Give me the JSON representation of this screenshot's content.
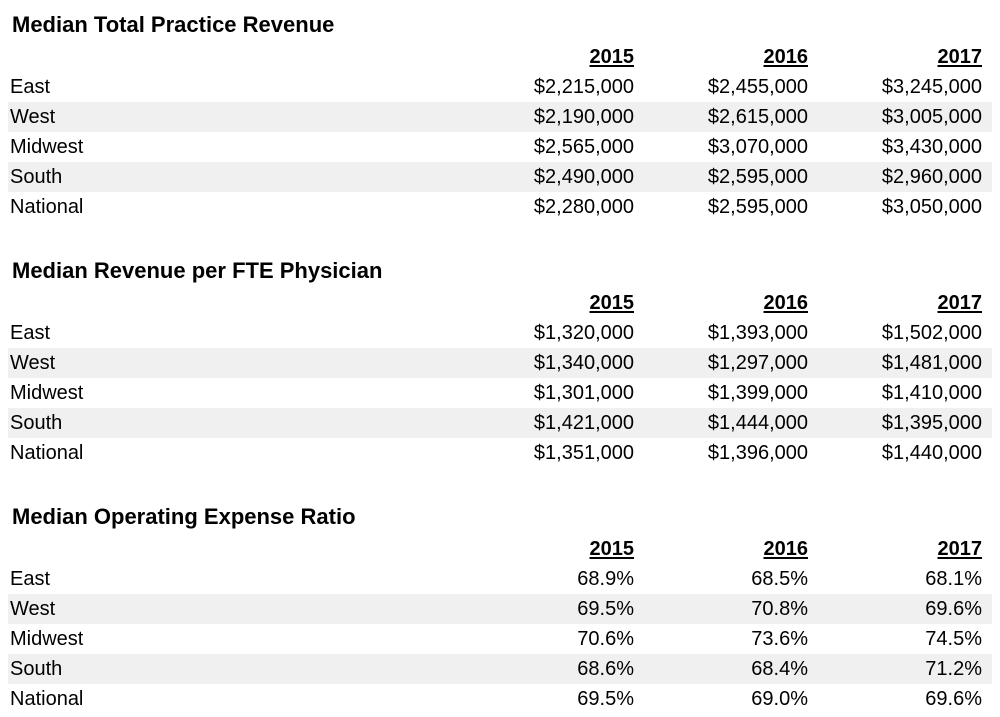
{
  "sections": [
    {
      "title": "Median Total Practice Revenue",
      "years": [
        "2015",
        "2016",
        "2017"
      ],
      "rows": [
        {
          "region": "East",
          "values": [
            "$2,215,000",
            "$2,455,000",
            "$3,245,000"
          ]
        },
        {
          "region": "West",
          "values": [
            "$2,190,000",
            "$2,615,000",
            "$3,005,000"
          ]
        },
        {
          "region": "Midwest",
          "values": [
            "$2,565,000",
            "$3,070,000",
            "$3,430,000"
          ]
        },
        {
          "region": "South",
          "values": [
            "$2,490,000",
            "$2,595,000",
            "$2,960,000"
          ]
        },
        {
          "region": "National",
          "values": [
            "$2,280,000",
            "$2,595,000",
            "$3,050,000"
          ]
        }
      ]
    },
    {
      "title": "Median Revenue per FTE Physician",
      "years": [
        "2015",
        "2016",
        "2017"
      ],
      "rows": [
        {
          "region": "East",
          "values": [
            "$1,320,000",
            "$1,393,000",
            "$1,502,000"
          ]
        },
        {
          "region": "West",
          "values": [
            "$1,340,000",
            "$1,297,000",
            "$1,481,000"
          ]
        },
        {
          "region": "Midwest",
          "values": [
            "$1,301,000",
            "$1,399,000",
            "$1,410,000"
          ]
        },
        {
          "region": "South",
          "values": [
            "$1,421,000",
            "$1,444,000",
            "$1,395,000"
          ]
        },
        {
          "region": "National",
          "values": [
            "$1,351,000",
            "$1,396,000",
            "$1,440,000"
          ]
        }
      ]
    },
    {
      "title": "Median Operating Expense Ratio",
      "years": [
        "2015",
        "2016",
        "2017"
      ],
      "rows": [
        {
          "region": "East",
          "values": [
            "68.9%",
            "68.5%",
            "68.1%"
          ]
        },
        {
          "region": "West",
          "values": [
            "69.5%",
            "70.8%",
            "69.6%"
          ]
        },
        {
          "region": "Midwest",
          "values": [
            "70.6%",
            "73.6%",
            "74.5%"
          ]
        },
        {
          "region": "South",
          "values": [
            "68.6%",
            "68.4%",
            "71.2%"
          ]
        },
        {
          "region": "National",
          "values": [
            "69.5%",
            "69.0%",
            "69.6%"
          ]
        }
      ]
    }
  ]
}
